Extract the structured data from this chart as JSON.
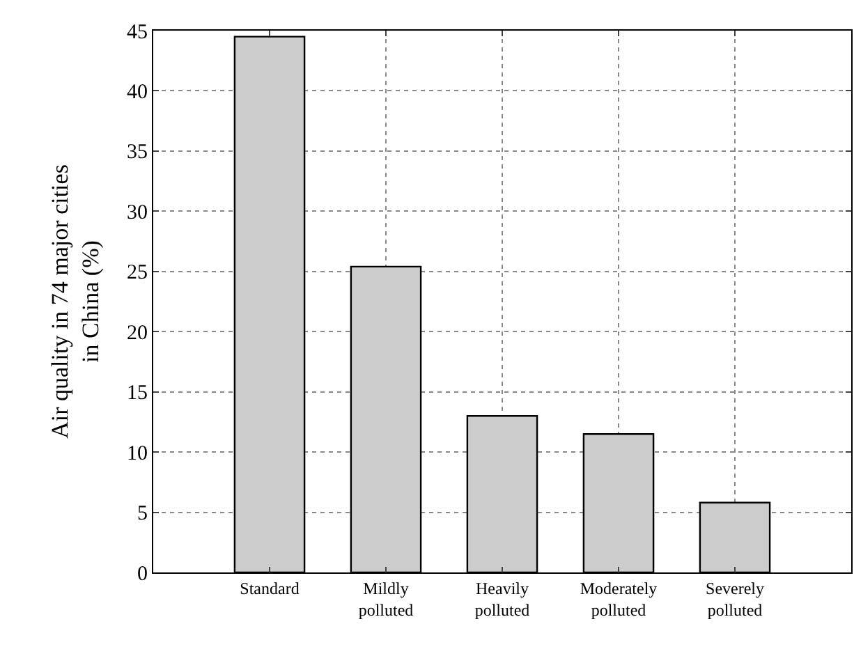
{
  "chart_data": {
    "type": "bar",
    "ylabel": "Air quality in 74 major cities\nin China (%)",
    "categories": [
      "Standard",
      "Mildly\npolluted",
      "Heavily\npolluted",
      "Moderately\npolluted",
      "Severely\npolluted"
    ],
    "values": [
      44.5,
      25.4,
      13.0,
      11.5,
      5.8
    ],
    "color": "#cccccc",
    "ylim": [
      0,
      45
    ],
    "yticks": [
      0,
      5,
      10,
      15,
      20,
      25,
      30,
      35,
      40,
      45
    ],
    "grid": true,
    "legend": false
  }
}
